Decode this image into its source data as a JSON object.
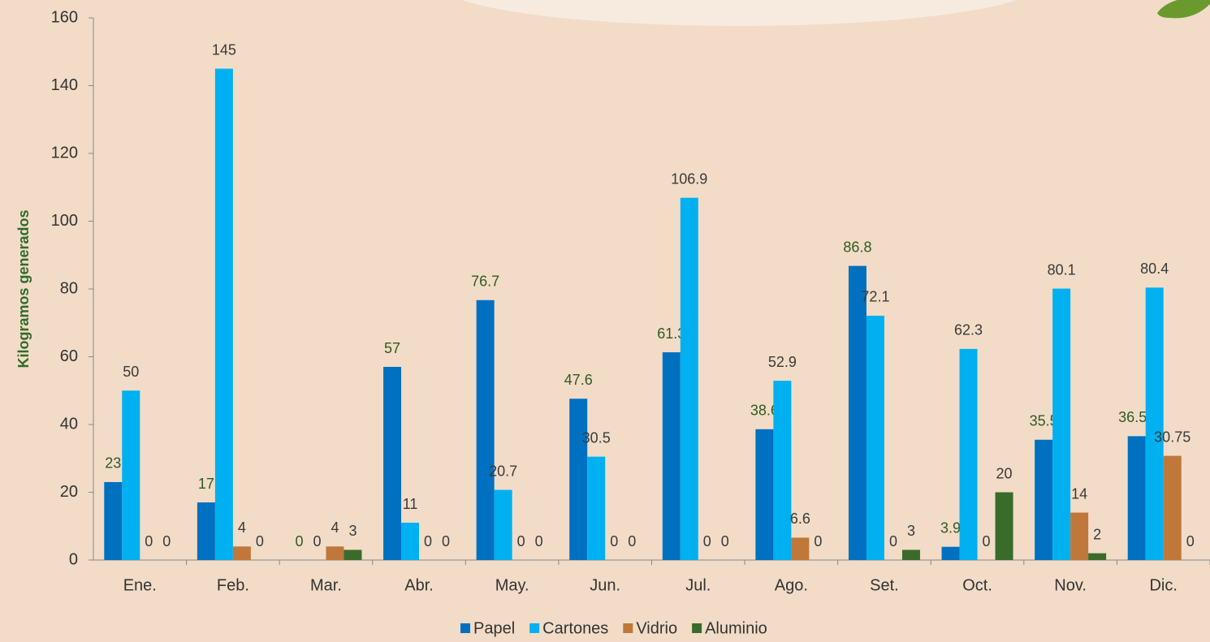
{
  "chart_data": {
    "type": "bar",
    "y_label": "Kilogramos generados",
    "categories": [
      "Ene.",
      "Feb.",
      "Mar.",
      "Abr.",
      "May.",
      "Jun.",
      "Jul.",
      "Ago.",
      "Set.",
      "Oct.",
      "Nov.",
      "Dic."
    ],
    "series": [
      {
        "name": "Papel",
        "color": "#0070c0",
        "label_color": "#2f5a22",
        "values": [
          23,
          17,
          0,
          57,
          76.7,
          47.6,
          61.3,
          38.6,
          86.8,
          3.9,
          35.5,
          36.55
        ]
      },
      {
        "name": "Cartones",
        "color": "#00b0f0",
        "label_color": "#3a3a3a",
        "values": [
          50,
          145,
          0,
          11,
          20.7,
          30.5,
          106.9,
          52.9,
          72.1,
          62.3,
          80.1,
          80.4
        ]
      },
      {
        "name": "Vidrio",
        "color": "#c0773a",
        "label_color": "#3a3a3a",
        "values": [
          0,
          4,
          4,
          0,
          0,
          0,
          0,
          6.6,
          0,
          0,
          14,
          30.75
        ]
      },
      {
        "name": "Aluminio",
        "color": "#3a6b2a",
        "label_color": "#3a3a3a",
        "values": [
          0,
          0,
          3,
          0,
          0,
          0,
          0,
          0,
          3,
          20,
          2,
          0
        ]
      }
    ],
    "ylim": [
      0,
      160
    ],
    "yticks": [
      0,
      20,
      40,
      60,
      80,
      100,
      120,
      140,
      160
    ],
    "grid": false,
    "legend": "bottom"
  }
}
